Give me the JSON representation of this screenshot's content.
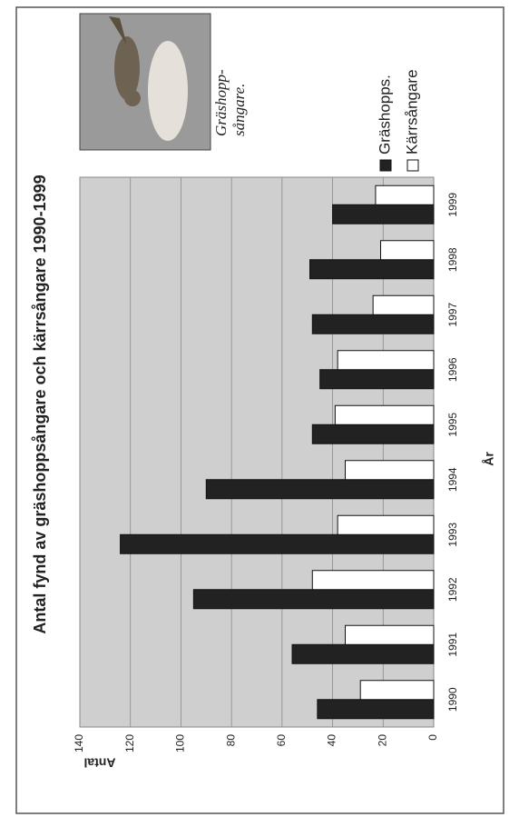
{
  "chart_data": {
    "type": "bar",
    "title": "Antal fynd av gräshoppsångare och kärrsångare 1990-1999",
    "x_label": "År",
    "y_label": "Antal",
    "categories": [
      "1990",
      "1991",
      "1992",
      "1993",
      "1994",
      "1995",
      "1996",
      "1997",
      "1998",
      "1999"
    ],
    "series": [
      {
        "name": "Gräshopps.",
        "color": "#222222",
        "values": [
          46,
          56,
          95,
          124,
          90,
          48,
          45,
          48,
          49,
          40
        ]
      },
      {
        "name": "Kärrsångare",
        "color": "#ffffff",
        "values": [
          29,
          35,
          48,
          38,
          35,
          39,
          38,
          24,
          21,
          23
        ]
      }
    ],
    "ylim": [
      0,
      140
    ],
    "yticks": [
      0,
      20,
      40,
      60,
      80,
      100,
      120,
      140
    ],
    "grid": true,
    "caption": [
      "Gräshopp-",
      "sångare."
    ]
  }
}
